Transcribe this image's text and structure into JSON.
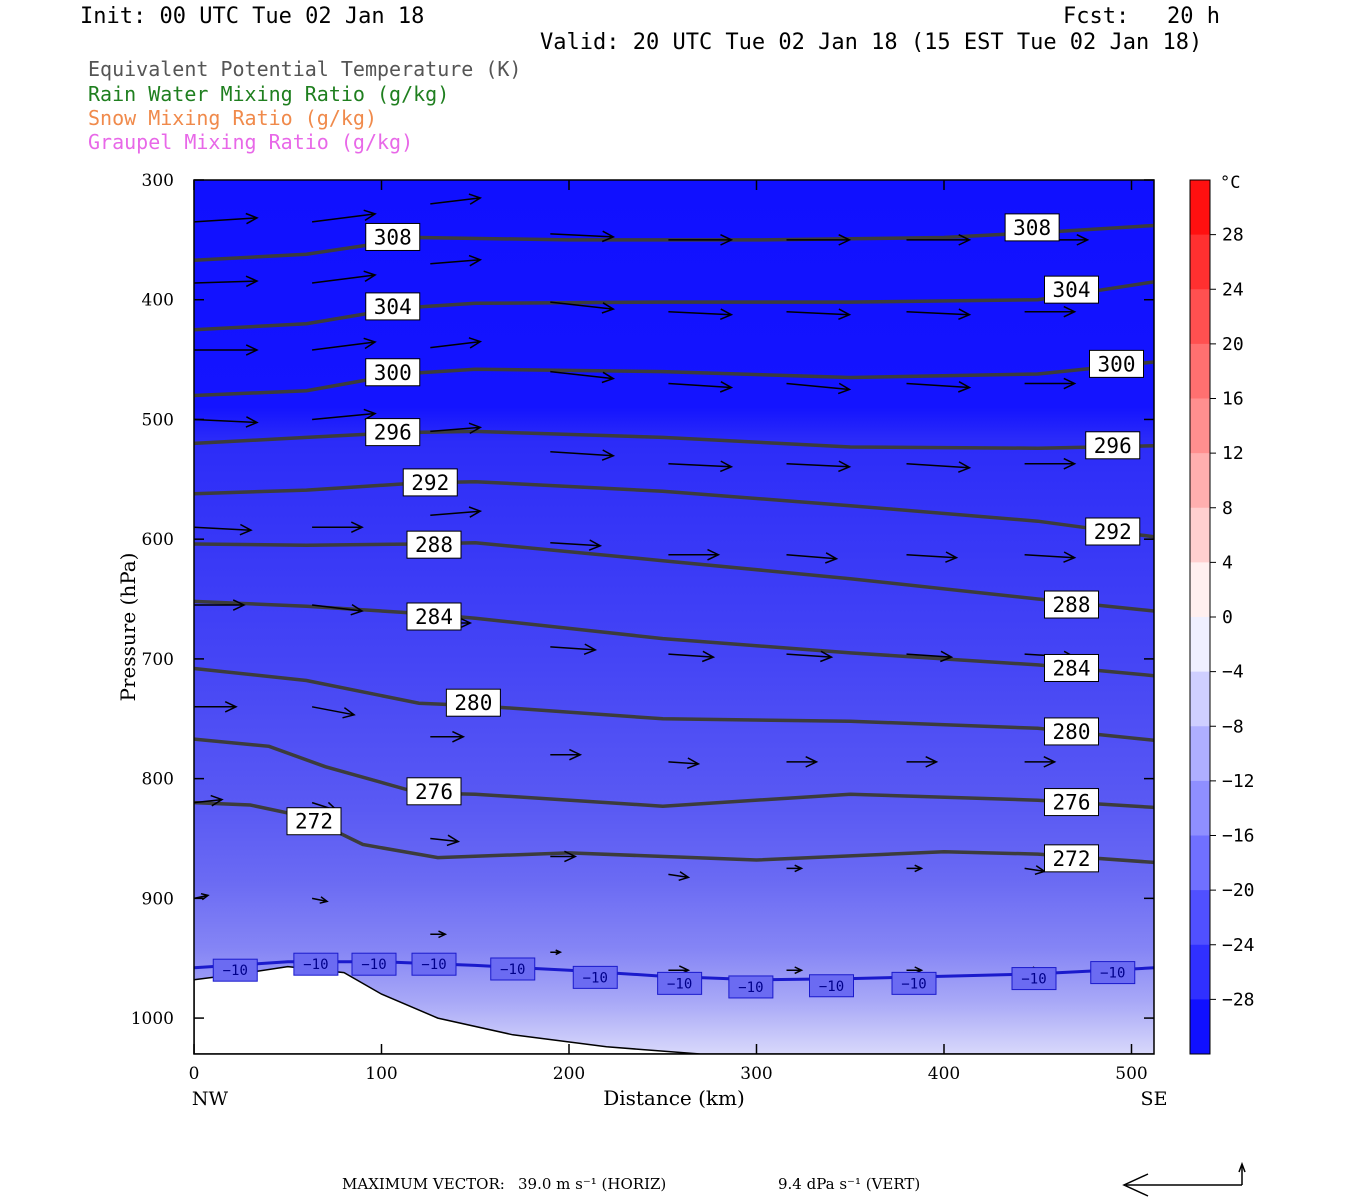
{
  "header": {
    "init": "Init: 00 UTC Tue 02 Jan 18",
    "fcst_label": "Fcst:",
    "fcst_value": "20 h",
    "valid": "Valid: 20 UTC Tue 02 Jan 18 (15 EST Tue 02 Jan 18)"
  },
  "legend": [
    {
      "text": "Equivalent Potential Temperature (K)",
      "color": "#555555"
    },
    {
      "text": "Rain Water Mixing Ratio (g/kg)",
      "color": "#1f7f1f"
    },
    {
      "text": "Snow Mixing Ratio (g/kg)",
      "color": "#f08a4b"
    },
    {
      "text": "Graupel Mixing Ratio (g/kg)",
      "color": "#e868e8"
    }
  ],
  "footer": {
    "max_vector_label": "MAXIMUM VECTOR:",
    "horiz": "39.0 m s⁻¹ (HORIZ)",
    "vert": "9.4 dPa s⁻¹ (VERT)"
  },
  "chart_data": {
    "type": "cross-section",
    "xlabel": "Distance (km)",
    "ylabel": "Pressure (hPa)",
    "xlim": [
      0,
      512
    ],
    "ylim": [
      1030,
      300
    ],
    "x_ticks": [
      0,
      100,
      200,
      300,
      400,
      500
    ],
    "y_ticks": [
      300,
      400,
      500,
      600,
      700,
      800,
      900,
      1000
    ],
    "x_end_labels": {
      "left": "NW",
      "right": "SE"
    },
    "colorbar": {
      "unit": "°C",
      "tick_labels": [
        "28",
        "24",
        "20",
        "16",
        "12",
        "8",
        "4",
        "0",
        "−4",
        "−8",
        "−12",
        "−16",
        "−20",
        "−24",
        "−28"
      ],
      "tick_values": [
        28,
        24,
        20,
        16,
        12,
        8,
        4,
        0,
        -4,
        -8,
        -12,
        -16,
        -20,
        -24,
        -28
      ],
      "range": [
        -32,
        32
      ],
      "neg_color": "#0000ff",
      "pos_color": "#ff0000"
    },
    "temperature_isotherm": {
      "value_label": "−10",
      "color": "#1a1acc",
      "points": [
        [
          0,
          958
        ],
        [
          50,
          953
        ],
        [
          100,
          953
        ],
        [
          150,
          956
        ],
        [
          200,
          960
        ],
        [
          250,
          965
        ],
        [
          300,
          968
        ],
        [
          350,
          967
        ],
        [
          400,
          965
        ],
        [
          450,
          963
        ],
        [
          512,
          958
        ]
      ],
      "label_positions": [
        [
          22,
          960
        ],
        [
          65,
          955
        ],
        [
          96,
          955
        ],
        [
          128,
          955
        ],
        [
          170,
          959
        ],
        [
          214,
          966
        ],
        [
          259,
          971
        ],
        [
          297,
          974
        ],
        [
          340,
          973
        ],
        [
          384,
          971
        ],
        [
          448,
          967
        ],
        [
          490,
          962
        ]
      ]
    },
    "theta_e_contours": [
      {
        "value": "308",
        "points": [
          [
            0,
            367
          ],
          [
            60,
            362
          ],
          [
            120,
            348
          ],
          [
            200,
            350
          ],
          [
            300,
            350
          ],
          [
            400,
            348
          ],
          [
            460,
            343
          ],
          [
            512,
            338
          ]
        ],
        "labels": [
          [
            106,
            348
          ],
          [
            447,
            340
          ]
        ]
      },
      {
        "value": "304",
        "points": [
          [
            0,
            425
          ],
          [
            60,
            420
          ],
          [
            110,
            407
          ],
          [
            150,
            403
          ],
          [
            250,
            402
          ],
          [
            350,
            402
          ],
          [
            450,
            400
          ],
          [
            512,
            385
          ]
        ],
        "labels": [
          [
            106,
            406
          ],
          [
            468,
            392
          ]
        ]
      },
      {
        "value": "300",
        "points": [
          [
            0,
            480
          ],
          [
            60,
            476
          ],
          [
            110,
            462
          ],
          [
            150,
            458
          ],
          [
            250,
            460
          ],
          [
            350,
            465
          ],
          [
            450,
            462
          ],
          [
            512,
            452
          ]
        ],
        "labels": [
          [
            106,
            461
          ],
          [
            492,
            454
          ]
        ]
      },
      {
        "value": "296",
        "points": [
          [
            0,
            520
          ],
          [
            60,
            515
          ],
          [
            110,
            511
          ],
          [
            150,
            510
          ],
          [
            250,
            515
          ],
          [
            350,
            523
          ],
          [
            450,
            524
          ],
          [
            512,
            522
          ]
        ],
        "labels": [
          [
            106,
            511
          ],
          [
            490,
            522
          ]
        ]
      },
      {
        "value": "292",
        "points": [
          [
            0,
            562
          ],
          [
            60,
            559
          ],
          [
            120,
            553
          ],
          [
            150,
            552
          ],
          [
            250,
            560
          ],
          [
            350,
            572
          ],
          [
            450,
            585
          ],
          [
            512,
            598
          ]
        ],
        "labels": [
          [
            126,
            553
          ],
          [
            490,
            594
          ]
        ]
      },
      {
        "value": "288",
        "points": [
          [
            0,
            604
          ],
          [
            60,
            605
          ],
          [
            120,
            604
          ],
          [
            150,
            603
          ],
          [
            250,
            618
          ],
          [
            350,
            633
          ],
          [
            450,
            650
          ],
          [
            512,
            660
          ]
        ],
        "labels": [
          [
            128,
            605
          ],
          [
            468,
            655
          ]
        ]
      },
      {
        "value": "284",
        "points": [
          [
            0,
            652
          ],
          [
            60,
            656
          ],
          [
            120,
            662
          ],
          [
            150,
            666
          ],
          [
            250,
            683
          ],
          [
            350,
            695
          ],
          [
            450,
            705
          ],
          [
            512,
            714
          ]
        ],
        "labels": [
          [
            128,
            665
          ],
          [
            468,
            708
          ]
        ]
      },
      {
        "value": "280",
        "points": [
          [
            0,
            708
          ],
          [
            60,
            718
          ],
          [
            120,
            737
          ],
          [
            150,
            739
          ],
          [
            250,
            750
          ],
          [
            350,
            752
          ],
          [
            450,
            758
          ],
          [
            512,
            768
          ]
        ],
        "labels": [
          [
            149,
            737
          ],
          [
            468,
            761
          ]
        ]
      },
      {
        "value": "276",
        "points": [
          [
            0,
            767
          ],
          [
            40,
            773
          ],
          [
            70,
            790
          ],
          [
            120,
            812
          ],
          [
            150,
            813
          ],
          [
            250,
            823
          ],
          [
            350,
            813
          ],
          [
            450,
            818
          ],
          [
            512,
            824
          ]
        ],
        "labels": [
          [
            128,
            811
          ],
          [
            468,
            820
          ]
        ]
      },
      {
        "value": "272",
        "points": [
          [
            0,
            820
          ],
          [
            30,
            822
          ],
          [
            60,
            832
          ],
          [
            90,
            855
          ],
          [
            130,
            866
          ],
          [
            200,
            862
          ],
          [
            300,
            868
          ],
          [
            400,
            861
          ],
          [
            450,
            863
          ],
          [
            512,
            870
          ]
        ],
        "labels": [
          [
            64,
            836
          ],
          [
            468,
            867
          ]
        ]
      }
    ],
    "wind_vectors": [
      [
        0,
        335,
        63,
        -4
      ],
      [
        63,
        335,
        63,
        -8
      ],
      [
        0,
        386,
        63,
        -2
      ],
      [
        63,
        386,
        63,
        -8
      ],
      [
        0,
        442,
        63,
        0
      ],
      [
        63,
        442,
        63,
        -8
      ],
      [
        0,
        500,
        63,
        3
      ],
      [
        63,
        500,
        63,
        -6
      ],
      [
        0,
        590,
        57,
        3
      ],
      [
        63,
        590,
        50,
        0
      ],
      [
        0,
        655,
        50,
        0
      ],
      [
        63,
        655,
        50,
        6
      ],
      [
        0,
        740,
        42,
        0
      ],
      [
        63,
        740,
        42,
        8
      ],
      [
        0,
        820,
        28,
        -3
      ],
      [
        63,
        820,
        25,
        8
      ],
      [
        0,
        900,
        14,
        -3
      ],
      [
        63,
        900,
        15,
        3
      ],
      [
        126,
        320,
        50,
        -6
      ],
      [
        126,
        370,
        50,
        -4
      ],
      [
        126,
        440,
        50,
        -6
      ],
      [
        126,
        510,
        50,
        -4
      ],
      [
        126,
        580,
        50,
        -4
      ],
      [
        126,
        670,
        40,
        0
      ],
      [
        126,
        765,
        33,
        0
      ],
      [
        126,
        850,
        28,
        3
      ],
      [
        126,
        930,
        15,
        0
      ],
      [
        190,
        345,
        63,
        3
      ],
      [
        190,
        402,
        63,
        7
      ],
      [
        190,
        460,
        63,
        7
      ],
      [
        190,
        527,
        63,
        4
      ],
      [
        190,
        603,
        50,
        3
      ],
      [
        190,
        690,
        45,
        3
      ],
      [
        190,
        780,
        30,
        0
      ],
      [
        190,
        865,
        25,
        0
      ],
      [
        190,
        945,
        10,
        0
      ],
      [
        253,
        350,
        63,
        0
      ],
      [
        253,
        410,
        63,
        3
      ],
      [
        253,
        470,
        63,
        4
      ],
      [
        253,
        537,
        63,
        3
      ],
      [
        253,
        613,
        50,
        0
      ],
      [
        253,
        696,
        45,
        3
      ],
      [
        253,
        786,
        30,
        2
      ],
      [
        253,
        880,
        20,
        3
      ],
      [
        253,
        960,
        20,
        0
      ],
      [
        316,
        350,
        63,
        0
      ],
      [
        316,
        410,
        63,
        3
      ],
      [
        316,
        470,
        63,
        6
      ],
      [
        316,
        537,
        63,
        3
      ],
      [
        316,
        613,
        50,
        4
      ],
      [
        316,
        696,
        45,
        3
      ],
      [
        316,
        786,
        30,
        0
      ],
      [
        316,
        875,
        15,
        0
      ],
      [
        316,
        960,
        15,
        0
      ],
      [
        380,
        350,
        63,
        0
      ],
      [
        380,
        410,
        63,
        3
      ],
      [
        380,
        470,
        63,
        4
      ],
      [
        380,
        537,
        63,
        4
      ],
      [
        380,
        613,
        50,
        3
      ],
      [
        380,
        696,
        45,
        3
      ],
      [
        380,
        786,
        30,
        0
      ],
      [
        380,
        875,
        15,
        0
      ],
      [
        380,
        960,
        15,
        0
      ],
      [
        443,
        350,
        63,
        0
      ],
      [
        443,
        410,
        50,
        0
      ],
      [
        443,
        470,
        50,
        0
      ],
      [
        443,
        537,
        50,
        0
      ],
      [
        443,
        613,
        50,
        3
      ],
      [
        443,
        696,
        50,
        3
      ],
      [
        443,
        786,
        30,
        0
      ],
      [
        443,
        875,
        20,
        3
      ],
      [
        443,
        960,
        15,
        0
      ]
    ],
    "terrain": [
      [
        0,
        968
      ],
      [
        25,
        963
      ],
      [
        50,
        957
      ],
      [
        80,
        962
      ],
      [
        100,
        980
      ],
      [
        130,
        1000
      ],
      [
        170,
        1014
      ],
      [
        220,
        1024
      ],
      [
        270,
        1030
      ],
      [
        350,
        1030
      ],
      [
        450,
        1030
      ],
      [
        512,
        1030
      ]
    ]
  }
}
